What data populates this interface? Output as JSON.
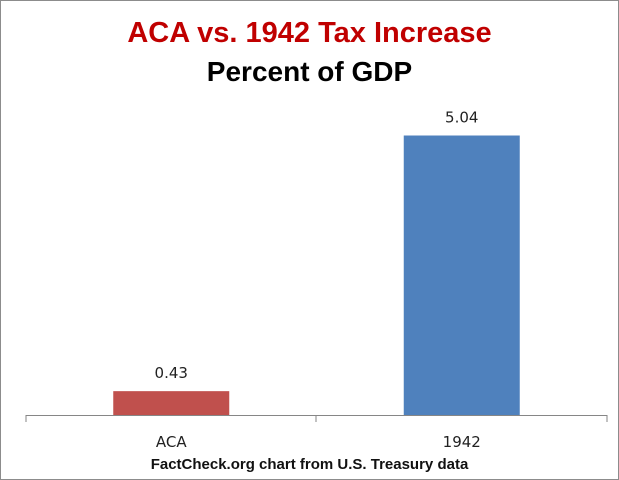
{
  "chart_data": {
    "type": "bar",
    "title": "ACA vs. 1942 Tax Increase",
    "subtitle": "Percent of GDP",
    "categories": [
      "ACA",
      "1942"
    ],
    "values": [
      0.43,
      5.04
    ],
    "colors": [
      "#c0504d",
      "#4f81bd"
    ],
    "data_labels": [
      "0.43",
      "5.04"
    ],
    "ylim": [
      0,
      5.5
    ],
    "grid": false,
    "source_note": "FactCheck.org  chart from U.S. Treasury data"
  }
}
